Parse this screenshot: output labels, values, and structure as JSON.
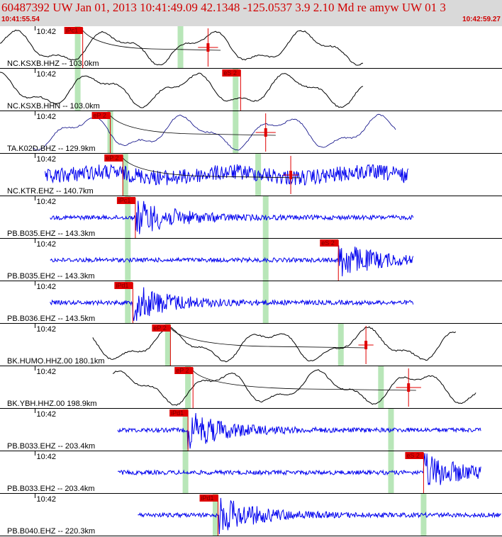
{
  "header": {
    "title": "60487392 UW Jan 01, 2013 10:41:49.09    42.1348 -125.0537  3.9 2.10 Md re amyw UW 01    3",
    "time_start": "10:41:55.54",
    "time_end": "10:42:59.27"
  },
  "colors": {
    "header_bg": "#d9d9d9",
    "header_text": "#d00000",
    "trace_broadband": "#000000",
    "trace_short_period": "#0000ee",
    "trace_thin": "#000080",
    "pick": "#e00000",
    "window": "#b8e6b8"
  },
  "chart_data": {
    "type": "line",
    "title": "60487392 UW Jan 01, 2013 10:41:49.09    42.1348 -125.0537  3.9 2.10 Md re amyw UW 01    3",
    "x_range": [
      "10:41:55.54",
      "10:42:59.27"
    ],
    "tick_label": "10:42",
    "tick_time_s": 4.46,
    "duration_s": 63.73,
    "traces": [
      {
        "label": "NC.KSXB.HHZ -- 103.0km",
        "tick": "10:42",
        "type": "bb",
        "start": 0.0,
        "end": 0.725,
        "pick": {
          "text": "iPc1",
          "t": 0.165
        },
        "windows": [
          0.155,
          0.36
        ],
        "err": {
          "t": 0.415,
          "half": 0.02
        },
        "coda": [
          0.165,
          0.44
        ]
      },
      {
        "label": "NC.KSXB.HHN -- 103.0km",
        "tick": "10:42",
        "type": "bb",
        "start": 0.0,
        "end": 0.725,
        "pick": {
          "text": "eS 2",
          "t": 0.48
        },
        "windows": [
          0.155,
          0.47
        ],
        "err": null,
        "coda": null
      },
      {
        "label": "TA.K02D.BHZ -- 129.9km",
        "tick": "10:42",
        "type": "bb_thin",
        "start": 0.065,
        "end": 0.79,
        "pick": {
          "text": "eP 2",
          "t": 0.22
        },
        "windows": [
          0.22,
          0.47
        ],
        "err": {
          "t": 0.53,
          "half": 0.02
        },
        "coda": [
          0.22,
          0.55
        ]
      },
      {
        "label": "NC.KTR.EHZ -- 140.7km",
        "tick": "10:42",
        "type": "sp",
        "start": 0.09,
        "end": 0.815,
        "pick": {
          "text": "eP 2",
          "t": 0.245
        },
        "windows": [
          0.25,
          0.515
        ],
        "err": {
          "t": 0.58,
          "half": 0.015
        },
        "coda": [
          0.245,
          0.6
        ]
      },
      {
        "label": "PB.B035.EHZ -- 143.3km",
        "tick": "10:42",
        "type": "sp_burst",
        "start": 0.1,
        "end": 0.825,
        "pick": {
          "text": "iPc1",
          "t": 0.27
        },
        "windows": [
          0.255,
          0.53
        ],
        "err": null,
        "coda": null
      },
      {
        "label": "PB.B035.EH2 -- 143.3km",
        "tick": "10:42",
        "type": "sp_burst",
        "start": 0.1,
        "end": 0.825,
        "pick": {
          "text": "eS 2",
          "t": 0.675
        },
        "windows": [
          0.255,
          0.53
        ],
        "err": null,
        "coda": null
      },
      {
        "label": "PB.B036.EHZ -- 143.5km",
        "tick": "10:42",
        "type": "sp_burst",
        "start": 0.1,
        "end": 0.825,
        "pick": {
          "text": "iPd1",
          "t": 0.265
        },
        "windows": [
          0.255,
          0.53
        ],
        "err": null,
        "coda": null
      },
      {
        "label": "BK.HUMO.HHZ.00 180.1km",
        "tick": "10:42",
        "type": "bb",
        "start": 0.185,
        "end": 0.91,
        "pick": {
          "text": "eP 2",
          "t": 0.34
        },
        "windows": [
          0.335,
          0.68
        ],
        "err": {
          "t": 0.73,
          "half": 0.015
        },
        "coda": [
          0.34,
          0.73
        ]
      },
      {
        "label": "BK.YBH.HHZ.00 198.9km",
        "tick": "10:42",
        "type": "bb",
        "start": 0.225,
        "end": 0.95,
        "pick": {
          "text": "eP 2",
          "t": 0.385
        },
        "windows": [
          0.375,
          0.76
        ],
        "err": {
          "t": 0.815,
          "half": 0.025
        },
        "coda": [
          0.385,
          0.83
        ]
      },
      {
        "label": "PB.B033.EHZ -- 203.4km",
        "tick": "10:42",
        "type": "sp_burst",
        "start": 0.235,
        "end": 0.96,
        "pick": {
          "text": "iPd1",
          "t": 0.375
        },
        "windows": [
          0.37,
          0.78
        ],
        "err": null,
        "coda": null
      },
      {
        "label": "PB.B033.EH2 -- 203.4km",
        "tick": "10:42",
        "type": "sp_burst",
        "start": 0.235,
        "end": 0.96,
        "pick": {
          "text": "eS 2",
          "t": 0.845
        },
        "windows": [
          0.37,
          0.78
        ],
        "err": null,
        "coda": null
      },
      {
        "label": "PB.B040.EHZ -- 220.3km",
        "tick": "10:42",
        "type": "sp_burst",
        "start": 0.275,
        "end": 1.0,
        "pick": {
          "text": "iPd1",
          "t": 0.435
        },
        "windows": [
          0.43,
          0.845
        ],
        "err": null,
        "coda": null
      }
    ]
  }
}
